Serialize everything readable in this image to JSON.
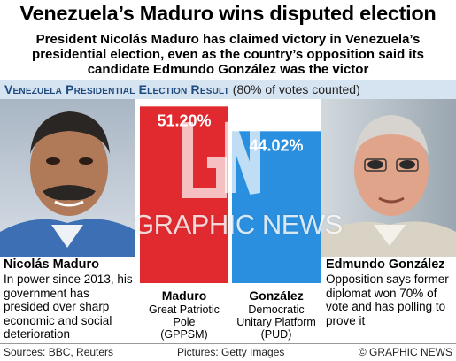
{
  "headline": "Venezuela’s Maduro wins disputed election",
  "subhead": "President Nicolás Maduro has claimed victory in Venezuela’s presidential election, even as the country’s opposition said its candidate Edmundo González was the victor",
  "section": {
    "title": "Venezuela Presidential Election Result",
    "note": "(80% of votes counted)"
  },
  "chart_data": {
    "type": "bar",
    "title": "Venezuela Presidential Election Result",
    "subtitle": "(80% of votes counted)",
    "categories": [
      "Maduro",
      "González"
    ],
    "values": [
      51.2,
      44.02
    ],
    "value_labels": [
      "51.20%",
      "44.02%"
    ],
    "colors": [
      "#e02a2f",
      "#2b8fdf"
    ],
    "ylim": [
      0,
      100
    ]
  },
  "candidates": {
    "left": {
      "name": "Nicolás Maduro",
      "description": "In power since 2013, his government has presided over sharp economic and social deterioration"
    },
    "right": {
      "name": "Edmundo González",
      "description": "Opposition says former diplomat won 70% of vote and has polling to prove it"
    }
  },
  "parties": {
    "left": {
      "name": "Maduro",
      "line1": "Great Patriotic",
      "line2": "Pole",
      "line3": "(GPPSM)"
    },
    "right": {
      "name": "González",
      "line1": "Democratic",
      "line2": "Unitary Platform",
      "line3": "(PUD)"
    }
  },
  "watermark": "GRAPHIC NEWS",
  "footer": {
    "sources": "Sources: BBC, Reuters",
    "pictures": "Pictures: Getty Images",
    "copyright": "© GRAPHIC NEWS"
  }
}
